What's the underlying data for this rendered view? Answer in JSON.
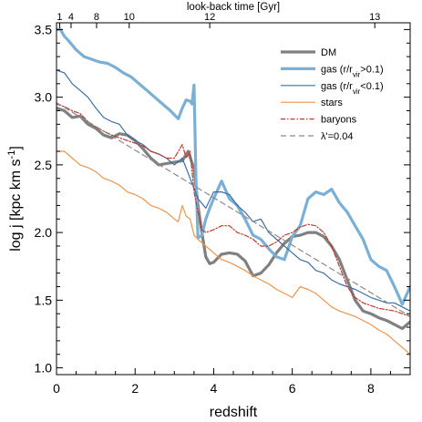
{
  "chart_data": {
    "type": "line",
    "xlabel": "redshift",
    "ylabel": "log j  [kpc km s",
    "ylabel_sup": "-1",
    "ylabel_end": "]",
    "top_xlabel": "look-back time [Gyr]",
    "xlim": [
      0,
      9
    ],
    "ylim": [
      0.95,
      3.55
    ],
    "x_ticks": [
      0,
      2,
      4,
      6,
      8
    ],
    "x_tick_labels": [
      "0",
      "2",
      "4",
      "6",
      "8"
    ],
    "y_ticks": [
      1.0,
      1.5,
      2.0,
      2.5,
      3.0,
      3.5
    ],
    "y_tick_labels": [
      "1.0",
      "1.5",
      "2.0",
      "2.5",
      "3.0",
      "3.5"
    ],
    "top_ticks": [
      {
        "label": "1",
        "z": 0.08
      },
      {
        "label": "4",
        "z": 0.37
      },
      {
        "label": "8",
        "z": 1.02
      },
      {
        "label": "10",
        "z": 1.85
      },
      {
        "label": "12",
        "z": 3.9
      },
      {
        "label": "13",
        "z": 8.1
      }
    ],
    "legend_position": "top-right",
    "series": [
      {
        "name": "DM",
        "color": "#808080",
        "width": 3.2,
        "dash": "",
        "x": [
          0,
          0.2,
          0.4,
          0.6,
          0.8,
          1.0,
          1.2,
          1.4,
          1.6,
          1.8,
          2.0,
          2.2,
          2.4,
          2.6,
          2.8,
          3.0,
          3.2,
          3.35,
          3.5,
          3.6,
          3.7,
          3.8,
          3.9,
          4.0,
          4.2,
          4.4,
          4.6,
          4.8,
          5.0,
          5.2,
          5.4,
          5.6,
          5.8,
          6.0,
          6.2,
          6.4,
          6.6,
          6.8,
          7.0,
          7.2,
          7.4,
          7.6,
          7.8,
          8.0,
          8.2,
          8.4,
          8.6,
          8.8,
          9.0
        ],
        "y": [
          2.92,
          2.9,
          2.85,
          2.86,
          2.8,
          2.77,
          2.72,
          2.7,
          2.73,
          2.72,
          2.68,
          2.62,
          2.55,
          2.5,
          2.51,
          2.52,
          2.53,
          2.6,
          2.47,
          2.2,
          2.0,
          1.82,
          1.77,
          1.78,
          1.84,
          1.85,
          1.84,
          1.79,
          1.68,
          1.7,
          1.76,
          1.85,
          1.92,
          1.97,
          1.98,
          2.0,
          2.0,
          1.97,
          1.9,
          1.8,
          1.65,
          1.5,
          1.42,
          1.4,
          1.37,
          1.35,
          1.32,
          1.29,
          1.34
        ]
      },
      {
        "name": "gas (r/r",
        "name_sub": "vir",
        "name_end": ">0.1)",
        "color": "#7aafd6",
        "width": 3.2,
        "dash": "",
        "x": [
          0,
          0.1,
          0.2,
          0.3,
          0.5,
          0.7,
          0.9,
          1.1,
          1.3,
          1.5,
          1.7,
          1.9,
          2.1,
          2.3,
          2.5,
          2.7,
          2.9,
          3.0,
          3.1,
          3.2,
          3.3,
          3.4,
          3.45,
          3.5,
          3.55,
          3.6,
          3.7,
          3.8,
          3.9,
          4.0,
          4.2,
          4.4,
          4.6,
          4.8,
          5.0,
          5.2,
          5.4,
          5.6,
          5.8,
          6.0,
          6.2,
          6.4,
          6.6,
          6.8,
          7.0,
          7.2,
          7.4,
          7.6,
          7.8,
          8.0,
          8.2,
          8.4,
          8.6,
          8.8,
          9.0
        ],
        "y": [
          3.5,
          3.5,
          3.45,
          3.42,
          3.35,
          3.3,
          3.28,
          3.26,
          3.25,
          3.22,
          3.18,
          3.15,
          3.1,
          3.05,
          3.0,
          2.95,
          2.9,
          2.87,
          2.84,
          2.92,
          2.98,
          2.97,
          2.95,
          3.09,
          2.4,
          1.96,
          1.98,
          2.1,
          2.18,
          2.25,
          2.38,
          2.25,
          2.2,
          2.1,
          1.98,
          1.95,
          1.88,
          1.82,
          1.8,
          1.97,
          2.05,
          2.25,
          2.3,
          2.28,
          2.32,
          2.22,
          2.15,
          2.05,
          1.95,
          1.8,
          1.75,
          1.72,
          1.6,
          1.47,
          1.6
        ]
      },
      {
        "name": "gas (r/r",
        "name_sub": "vir",
        "name_end": "<0.1)",
        "color": "#3b6ea5",
        "width": 1.2,
        "dash": "",
        "x": [
          0,
          0.2,
          0.4,
          0.6,
          0.8,
          1.0,
          1.2,
          1.4,
          1.6,
          1.8,
          2.0,
          2.2,
          2.4,
          2.6,
          2.8,
          3.0,
          3.2,
          3.4,
          3.6,
          3.8,
          4.0,
          4.2,
          4.4,
          4.6,
          4.8,
          5.0,
          5.2,
          5.4,
          5.6,
          5.8,
          6.0,
          6.2,
          6.4,
          6.6,
          6.8,
          7.0,
          7.2,
          7.4,
          7.6,
          7.8,
          8.0,
          8.2,
          8.4,
          8.6,
          8.8,
          9.0
        ],
        "y": [
          3.2,
          3.18,
          3.1,
          3.05,
          3.0,
          2.92,
          2.85,
          2.82,
          2.8,
          2.72,
          2.68,
          2.65,
          2.6,
          2.58,
          2.55,
          2.5,
          2.55,
          2.4,
          2.25,
          2.18,
          2.3,
          2.3,
          2.28,
          2.2,
          2.15,
          2.08,
          2.1,
          2.0,
          1.95,
          1.9,
          1.85,
          1.8,
          1.78,
          1.72,
          1.7,
          1.65,
          1.62,
          1.6,
          1.58,
          1.55,
          1.52,
          1.5,
          1.48,
          1.48,
          1.45,
          1.42
        ]
      },
      {
        "name": "stars",
        "color": "#f0944a",
        "width": 1.2,
        "dash": "",
        "x": [
          0,
          0.2,
          0.4,
          0.6,
          0.8,
          1.0,
          1.2,
          1.4,
          1.6,
          1.8,
          2.0,
          2.2,
          2.4,
          2.6,
          2.8,
          3.0,
          3.1,
          3.2,
          3.3,
          3.4,
          3.5,
          3.6,
          3.8,
          4.0,
          4.2,
          4.4,
          4.6,
          4.8,
          5.0,
          5.2,
          5.4,
          5.6,
          5.8,
          6.0,
          6.2,
          6.4,
          6.6,
          6.8,
          7.0,
          7.2,
          7.4,
          7.6,
          7.8,
          8.0,
          8.2,
          8.4,
          8.6,
          8.8,
          9.0
        ],
        "y": [
          2.6,
          2.6,
          2.55,
          2.5,
          2.48,
          2.45,
          2.4,
          2.38,
          2.35,
          2.3,
          2.28,
          2.25,
          2.2,
          2.18,
          2.15,
          2.1,
          2.08,
          2.2,
          2.12,
          2.1,
          1.98,
          1.95,
          1.9,
          1.85,
          1.8,
          1.78,
          1.75,
          1.72,
          1.68,
          1.65,
          1.62,
          1.58,
          1.55,
          1.52,
          1.6,
          1.58,
          1.55,
          1.5,
          1.45,
          1.42,
          1.4,
          1.38,
          1.35,
          1.32,
          1.28,
          1.25,
          1.2,
          1.15,
          1.1
        ]
      },
      {
        "name": "baryons",
        "color": "#c0392b",
        "width": 1.2,
        "dash": "5,2,1.5,2",
        "x": [
          0,
          0.2,
          0.4,
          0.6,
          0.8,
          1.0,
          1.2,
          1.4,
          1.6,
          1.8,
          2.0,
          2.2,
          2.4,
          2.6,
          2.8,
          3.0,
          3.1,
          3.2,
          3.3,
          3.4,
          3.5,
          3.6,
          3.7,
          3.8,
          4.0,
          4.2,
          4.4,
          4.6,
          4.8,
          5.0,
          5.2,
          5.4,
          5.6,
          5.8,
          6.0,
          6.2,
          6.4,
          6.6,
          6.8,
          7.0,
          7.2,
          7.4,
          7.6,
          7.8,
          8.0,
          8.2,
          8.4,
          8.6,
          8.8,
          9.0
        ],
        "y": [
          2.95,
          2.93,
          2.9,
          2.88,
          2.82,
          2.78,
          2.75,
          2.72,
          2.7,
          2.68,
          2.66,
          2.64,
          2.6,
          2.58,
          2.55,
          2.55,
          2.6,
          2.65,
          2.55,
          2.6,
          2.3,
          2.15,
          2.02,
          2.0,
          2.02,
          2.05,
          2.05,
          2.0,
          1.98,
          1.95,
          1.9,
          1.9,
          1.93,
          1.98,
          2.0,
          2.04,
          2.06,
          2.05,
          2.0,
          1.9,
          1.75,
          1.6,
          1.52,
          1.48,
          1.46,
          1.44,
          1.43,
          1.42,
          1.4,
          1.38
        ]
      },
      {
        "name": "λ'=0.04",
        "color": "#8a8a8a",
        "width": 1.2,
        "dash": "6,4",
        "x": [
          0,
          9
        ],
        "y": [
          2.96,
          1.38
        ]
      }
    ]
  }
}
